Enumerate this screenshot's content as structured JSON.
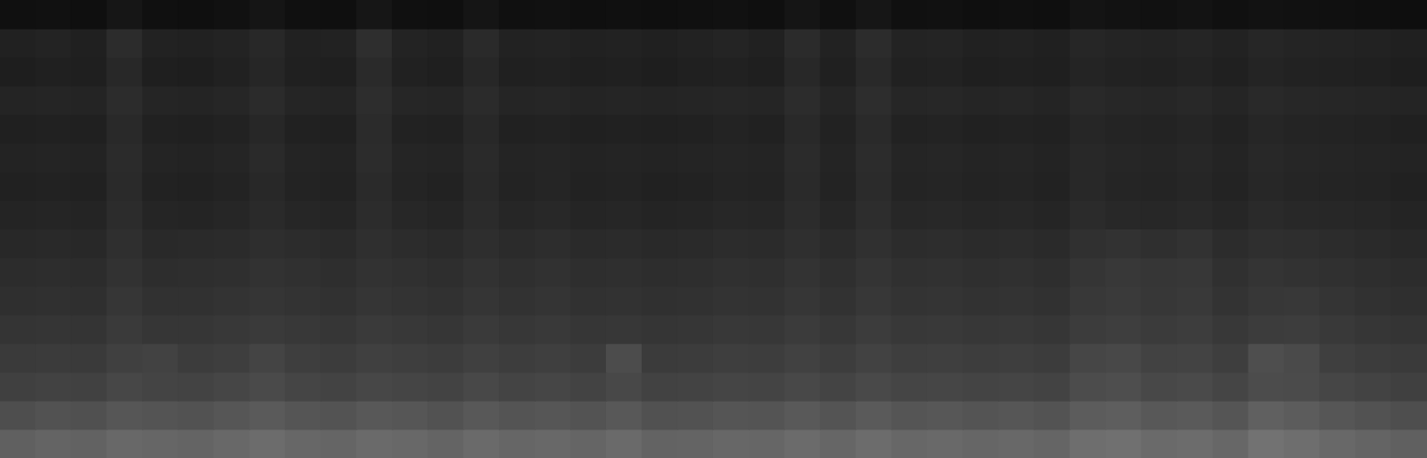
{
  "chart_data": {
    "type": "heatmap",
    "tick_labels": false,
    "grid": false,
    "color_range": [
      0,
      255
    ],
    "cells": [
      [
        16,
        17,
        15,
        22,
        16,
        15,
        17,
        21,
        16,
        15,
        22,
        16,
        15,
        21,
        16,
        17,
        15,
        16,
        15,
        16,
        17,
        15,
        21,
        16,
        22,
        16,
        17,
        15,
        16,
        15,
        20,
        18,
        17,
        19,
        16,
        18,
        17,
        16,
        15,
        14
      ],
      [
        33,
        35,
        32,
        44,
        34,
        33,
        35,
        40,
        33,
        34,
        46,
        35,
        33,
        42,
        34,
        35,
        33,
        34,
        32,
        34,
        36,
        33,
        43,
        34,
        44,
        35,
        36,
        33,
        34,
        32,
        38,
        36,
        35,
        37,
        34,
        38,
        36,
        35,
        34,
        32
      ],
      [
        30,
        32,
        31,
        40,
        31,
        30,
        33,
        38,
        32,
        31,
        42,
        33,
        31,
        39,
        32,
        33,
        31,
        32,
        30,
        32,
        33,
        31,
        40,
        32,
        41,
        33,
        34,
        31,
        32,
        31,
        36,
        34,
        33,
        35,
        32,
        36,
        34,
        33,
        32,
        30
      ],
      [
        36,
        37,
        36,
        44,
        37,
        36,
        38,
        43,
        37,
        36,
        45,
        38,
        37,
        43,
        37,
        38,
        36,
        37,
        36,
        37,
        38,
        37,
        44,
        37,
        45,
        38,
        39,
        37,
        38,
        36,
        41,
        39,
        38,
        40,
        37,
        41,
        39,
        38,
        37,
        36
      ],
      [
        32,
        33,
        32,
        41,
        33,
        32,
        34,
        39,
        33,
        32,
        43,
        34,
        33,
        40,
        33,
        34,
        32,
        33,
        32,
        33,
        35,
        33,
        41,
        34,
        42,
        34,
        35,
        33,
        34,
        33,
        38,
        36,
        35,
        37,
        34,
        38,
        36,
        35,
        34,
        32
      ],
      [
        35,
        36,
        35,
        43,
        36,
        35,
        37,
        42,
        36,
        35,
        44,
        37,
        36,
        42,
        36,
        37,
        35,
        36,
        35,
        36,
        37,
        36,
        43,
        36,
        44,
        37,
        38,
        36,
        37,
        35,
        40,
        38,
        37,
        39,
        36,
        40,
        38,
        37,
        36,
        35
      ],
      [
        33,
        34,
        33,
        42,
        34,
        33,
        35,
        40,
        35,
        34,
        42,
        36,
        34,
        41,
        35,
        37,
        34,
        35,
        33,
        34,
        36,
        35,
        42,
        35,
        43,
        36,
        37,
        35,
        36,
        34,
        40,
        37,
        36,
        38,
        35,
        39,
        37,
        36,
        35,
        33
      ],
      [
        36,
        37,
        36,
        44,
        37,
        36,
        38,
        42,
        38,
        37,
        44,
        39,
        37,
        43,
        38,
        40,
        37,
        38,
        36,
        37,
        39,
        38,
        44,
        38,
        45,
        39,
        40,
        38,
        39,
        37,
        43,
        40,
        39,
        41,
        38,
        42,
        40,
        39,
        38,
        36
      ],
      [
        40,
        41,
        40,
        47,
        41,
        42,
        43,
        46,
        44,
        42,
        47,
        44,
        42,
        46,
        43,
        45,
        42,
        43,
        41,
        42,
        44,
        43,
        47,
        43,
        48,
        44,
        45,
        43,
        44,
        42,
        48,
        50,
        47,
        50,
        44,
        47,
        46,
        44,
        42,
        40
      ],
      [
        44,
        45,
        44,
        50,
        45,
        46,
        47,
        50,
        48,
        46,
        50,
        48,
        46,
        50,
        47,
        49,
        46,
        47,
        45,
        46,
        48,
        47,
        51,
        47,
        52,
        48,
        49,
        47,
        48,
        46,
        53,
        56,
        54,
        55,
        48,
        52,
        50,
        48,
        46,
        44
      ],
      [
        47,
        48,
        47,
        54,
        49,
        49,
        51,
        53,
        51,
        49,
        53,
        51,
        49,
        53,
        50,
        52,
        49,
        50,
        48,
        49,
        51,
        50,
        54,
        50,
        55,
        51,
        52,
        50,
        51,
        49,
        56,
        58,
        55,
        57,
        51,
        55,
        56,
        52,
        49,
        47
      ],
      [
        52,
        53,
        52,
        58,
        54,
        54,
        56,
        58,
        56,
        54,
        58,
        56,
        54,
        58,
        55,
        57,
        54,
        55,
        53,
        54,
        56,
        55,
        59,
        55,
        60,
        56,
        57,
        55,
        56,
        54,
        60,
        62,
        59,
        61,
        56,
        60,
        61,
        57,
        54,
        52
      ],
      [
        58,
        59,
        58,
        64,
        66,
        60,
        62,
        68,
        62,
        60,
        64,
        62,
        60,
        64,
        61,
        63,
        60,
        76,
        59,
        60,
        62,
        61,
        65,
        61,
        66,
        62,
        63,
        61,
        62,
        60,
        70,
        72,
        66,
        67,
        62,
        78,
        74,
        63,
        60,
        58
      ],
      [
        64,
        66,
        65,
        71,
        68,
        67,
        70,
        74,
        69,
        67,
        71,
        69,
        67,
        72,
        68,
        70,
        67,
        72,
        66,
        67,
        69,
        68,
        72,
        68,
        73,
        69,
        70,
        68,
        69,
        67,
        76,
        78,
        72,
        74,
        69,
        76,
        75,
        70,
        67,
        64
      ],
      [
        78,
        82,
        80,
        86,
        84,
        82,
        86,
        90,
        85,
        83,
        88,
        86,
        82,
        88,
        84,
        86,
        83,
        88,
        81,
        82,
        85,
        84,
        89,
        84,
        90,
        85,
        87,
        84,
        86,
        83,
        92,
        94,
        88,
        90,
        85,
        96,
        92,
        86,
        82,
        78
      ],
      [
        96,
        100,
        98,
        104,
        102,
        100,
        104,
        108,
        103,
        101,
        106,
        104,
        100,
        106,
        102,
        104,
        101,
        106,
        99,
        100,
        103,
        102,
        107,
        102,
        108,
        103,
        105,
        102,
        104,
        101,
        110,
        112,
        106,
        108,
        103,
        114,
        110,
        104,
        100,
        96
      ]
    ]
  }
}
